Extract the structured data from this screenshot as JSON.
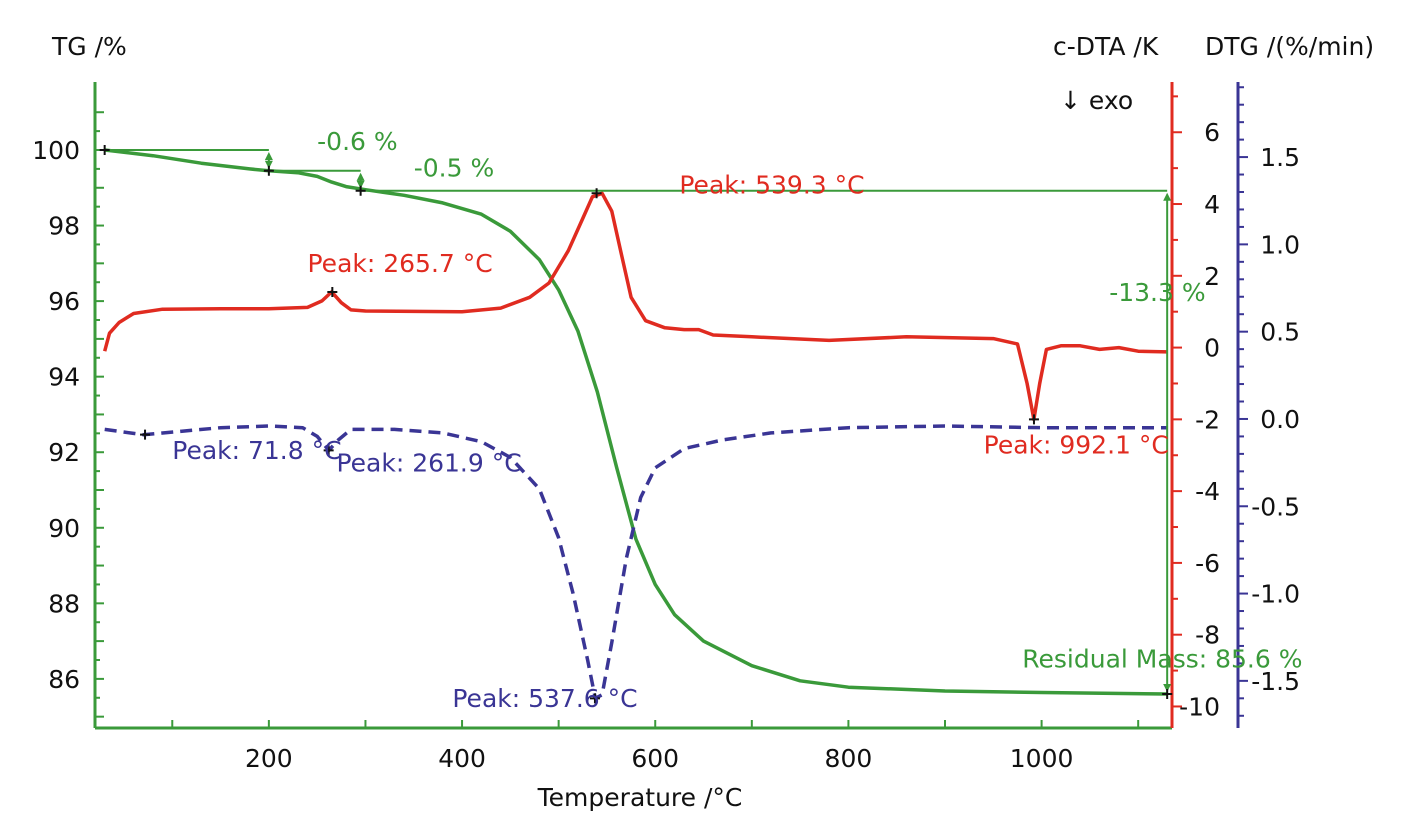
{
  "chart_data": {
    "type": "line",
    "x_axis": {
      "label": "Temperature /°C",
      "ticks": [
        "200",
        "400",
        "600",
        "800",
        "1000"
      ],
      "tick_values": [
        200,
        400,
        600,
        800,
        1000
      ],
      "range": [
        20,
        1135
      ]
    },
    "y_axes": {
      "tg": {
        "label": "TG /%",
        "color": "#3a9a3a",
        "ticks": [
          "100",
          "98",
          "96",
          "94",
          "92",
          "90",
          "88",
          "86"
        ],
        "tick_values": [
          100,
          98,
          96,
          94,
          92,
          90,
          88,
          86
        ],
        "range": [
          84.7,
          101.8
        ]
      },
      "dta": {
        "label": "c-DTA /K",
        "color": "#e02b20",
        "ticks": [
          "6",
          "4",
          "2",
          "0",
          "-2",
          "-4",
          "-6",
          "-8",
          "-10"
        ],
        "tick_values": [
          6,
          4,
          2,
          0,
          -2,
          -4,
          -6,
          -8,
          -10
        ],
        "range": [
          -10.6,
          7.4
        ],
        "direction_note": "↓ exo"
      },
      "dtg": {
        "label": "DTG /(%/min)",
        "color": "#3a3595",
        "ticks": [
          "1.5",
          "1.0",
          "0.5",
          "0.0",
          "-0.5",
          "-1.0",
          "-1.5"
        ],
        "tick_values": [
          1.5,
          1.0,
          0.5,
          0.0,
          -0.5,
          -1.0,
          -1.5
        ],
        "range": [
          -1.77,
          1.93
        ]
      }
    },
    "series": [
      {
        "axis": "tg",
        "color": "#3a9a3a",
        "style": "solid",
        "points": [
          [
            30,
            100
          ],
          [
            80,
            99.85
          ],
          [
            130,
            99.65
          ],
          [
            180,
            99.5
          ],
          [
            200,
            99.45
          ],
          [
            230,
            99.4
          ],
          [
            250,
            99.3
          ],
          [
            265,
            99.15
          ],
          [
            280,
            99.03
          ],
          [
            300,
            98.95
          ],
          [
            340,
            98.8
          ],
          [
            380,
            98.6
          ],
          [
            420,
            98.3
          ],
          [
            450,
            97.85
          ],
          [
            480,
            97.1
          ],
          [
            500,
            96.3
          ],
          [
            520,
            95.2
          ],
          [
            540,
            93.6
          ],
          [
            560,
            91.6
          ],
          [
            580,
            89.7
          ],
          [
            600,
            88.5
          ],
          [
            620,
            87.7
          ],
          [
            650,
            87.0
          ],
          [
            700,
            86.35
          ],
          [
            750,
            85.95
          ],
          [
            800,
            85.78
          ],
          [
            900,
            85.68
          ],
          [
            1000,
            85.64
          ],
          [
            1130,
            85.6
          ]
        ]
      },
      {
        "axis": "dta",
        "color": "#e02b20",
        "style": "solid",
        "points": [
          [
            30,
            -0.1
          ],
          [
            35,
            0.4
          ],
          [
            45,
            0.7
          ],
          [
            60,
            0.95
          ],
          [
            90,
            1.07
          ],
          [
            150,
            1.08
          ],
          [
            200,
            1.08
          ],
          [
            240,
            1.12
          ],
          [
            255,
            1.3
          ],
          [
            265,
            1.55
          ],
          [
            275,
            1.25
          ],
          [
            285,
            1.05
          ],
          [
            300,
            1.02
          ],
          [
            400,
            1.0
          ],
          [
            440,
            1.1
          ],
          [
            470,
            1.4
          ],
          [
            490,
            1.8
          ],
          [
            510,
            2.7
          ],
          [
            525,
            3.6
          ],
          [
            535,
            4.2
          ],
          [
            545,
            4.3
          ],
          [
            555,
            3.8
          ],
          [
            565,
            2.6
          ],
          [
            575,
            1.4
          ],
          [
            590,
            0.75
          ],
          [
            610,
            0.55
          ],
          [
            630,
            0.5
          ],
          [
            645,
            0.5
          ],
          [
            660,
            0.35
          ],
          [
            700,
            0.3
          ],
          [
            780,
            0.2
          ],
          [
            860,
            0.3
          ],
          [
            950,
            0.25
          ],
          [
            975,
            0.1
          ],
          [
            985,
            -1.0
          ],
          [
            992,
            -2.0
          ],
          [
            998,
            -1.0
          ],
          [
            1005,
            -0.05
          ],
          [
            1020,
            0.05
          ],
          [
            1040,
            0.05
          ],
          [
            1060,
            -0.05
          ],
          [
            1080,
            0.0
          ],
          [
            1100,
            -0.1
          ],
          [
            1130,
            -0.12
          ]
        ]
      },
      {
        "axis": "dtg",
        "color": "#3a3595",
        "style": "dashed",
        "points": [
          [
            30,
            -0.06
          ],
          [
            70,
            -0.09
          ],
          [
            110,
            -0.07
          ],
          [
            150,
            -0.05
          ],
          [
            200,
            -0.04
          ],
          [
            235,
            -0.05
          ],
          [
            250,
            -0.1
          ],
          [
            262,
            -0.18
          ],
          [
            272,
            -0.12
          ],
          [
            285,
            -0.06
          ],
          [
            330,
            -0.06
          ],
          [
            380,
            -0.08
          ],
          [
            420,
            -0.13
          ],
          [
            450,
            -0.22
          ],
          [
            480,
            -0.4
          ],
          [
            500,
            -0.68
          ],
          [
            515,
            -1.0
          ],
          [
            530,
            -1.38
          ],
          [
            538,
            -1.6
          ],
          [
            545,
            -1.58
          ],
          [
            555,
            -1.28
          ],
          [
            570,
            -0.8
          ],
          [
            585,
            -0.45
          ],
          [
            600,
            -0.28
          ],
          [
            630,
            -0.17
          ],
          [
            670,
            -0.12
          ],
          [
            720,
            -0.08
          ],
          [
            800,
            -0.05
          ],
          [
            900,
            -0.04
          ],
          [
            1000,
            -0.05
          ],
          [
            1130,
            -0.05
          ]
        ]
      }
    ],
    "annotations": [
      {
        "text": "-0.6 %",
        "color": "#3a9a3a",
        "x": 250,
        "y": 100.0,
        "axis": "tg"
      },
      {
        "text": "-0.5 %",
        "color": "#3a9a3a",
        "x": 350,
        "y": 99.3,
        "axis": "tg"
      },
      {
        "text": "-13.3 %",
        "color": "#3a9a3a",
        "x": 1070,
        "y": 96.0,
        "axis": "tg"
      },
      {
        "text": "Residual Mass: 85.6 %",
        "color": "#3a9a3a",
        "x": 980,
        "y": 86.3,
        "axis": "tg"
      },
      {
        "text": "Peak: 539.3 °C",
        "color": "#e02b20",
        "x": 625,
        "y": 4.3,
        "axis": "dta"
      },
      {
        "text": "Peak: 265.7 °C",
        "color": "#e02b20",
        "x": 240,
        "y": 2.1,
        "axis": "dta"
      },
      {
        "text": "Peak: 992.1 °C",
        "color": "#e02b20",
        "x": 940,
        "y": -2.95,
        "axis": "dta"
      },
      {
        "text": "Peak: 71.8 °C",
        "color": "#3a3595",
        "x": 100,
        "y": -0.23,
        "axis": "dtg"
      },
      {
        "text": "Peak: 261.9 °C",
        "color": "#3a3595",
        "x": 270,
        "y": -0.3,
        "axis": "dtg"
      },
      {
        "text": "Peak: 537.6 °C",
        "color": "#3a3595",
        "x": 390,
        "y": -1.65,
        "axis": "dtg"
      }
    ],
    "step_markers": {
      "color": "#3a9a3a",
      "points": [
        [
          30,
          100.0
        ],
        [
          200,
          99.45
        ],
        [
          295,
          98.92
        ],
        [
          1130,
          85.6
        ]
      ],
      "levels": [
        {
          "from_x": 30,
          "to_x": 200,
          "y": 100.0
        },
        {
          "from_x": 200,
          "to_x": 295,
          "y": 99.45
        },
        {
          "from_x": 295,
          "to_x": 1130,
          "y": 98.92
        }
      ],
      "arrows": [
        {
          "x": 200,
          "y_from": 100.0,
          "y_to": 99.45
        },
        {
          "x": 295,
          "y_from": 99.45,
          "y_to": 98.92
        },
        {
          "x": 1130,
          "y_from": 98.92,
          "y_to": 85.6
        }
      ]
    },
    "peak_markers": [
      {
        "x": 539.3,
        "y": 4.3,
        "axis": "dta"
      },
      {
        "x": 265.7,
        "y": 1.55,
        "axis": "dta"
      },
      {
        "x": 992.1,
        "y": -2.0,
        "axis": "dta"
      },
      {
        "x": 71.8,
        "y": -0.09,
        "axis": "dtg"
      },
      {
        "x": 261.9,
        "y": -0.18,
        "axis": "dtg"
      },
      {
        "x": 537.6,
        "y": -1.6,
        "axis": "dtg"
      }
    ],
    "grid": false,
    "legend": "none"
  }
}
